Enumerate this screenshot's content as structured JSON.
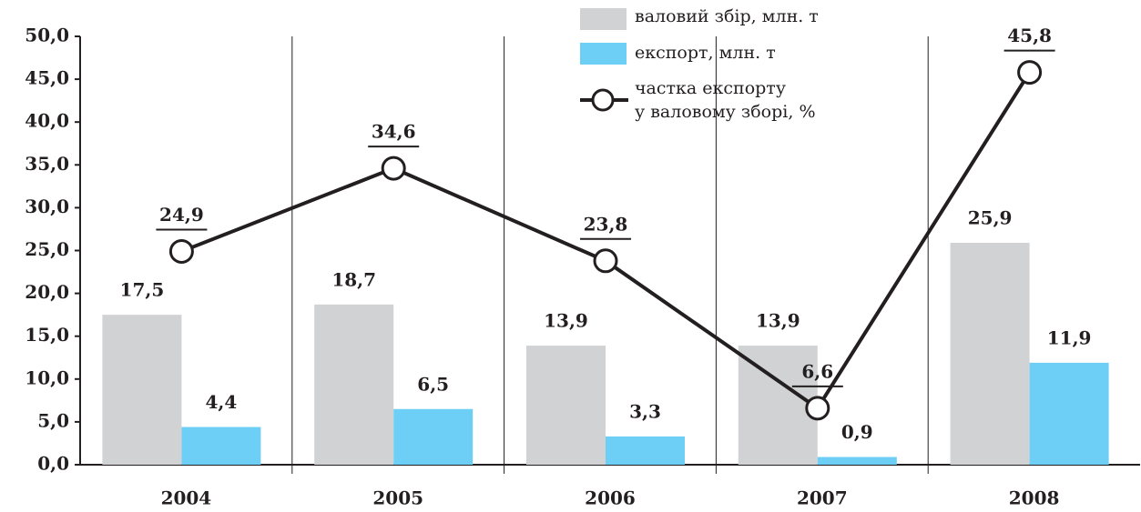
{
  "chart_data": {
    "type": "bar",
    "categories": [
      "2004",
      "2005",
      "2006",
      "2007",
      "2008"
    ],
    "series": [
      {
        "name": "валовий збір, млн. т",
        "type": "bar",
        "color": "#d1d2d3",
        "values": [
          17.5,
          18.7,
          13.9,
          13.9,
          25.9
        ],
        "value_labels": [
          "17,5",
          "18,7",
          "13,9",
          "13,9",
          "25,9"
        ]
      },
      {
        "name": "експорт, млн. т",
        "type": "bar",
        "color": "#6dcff6",
        "values": [
          4.4,
          6.5,
          3.3,
          0.9,
          11.9
        ],
        "value_labels": [
          "4,4",
          "6,5",
          "3,3",
          "0,9",
          "11,9"
        ]
      },
      {
        "name": "частка експорту\nу валовому зборі, %",
        "type": "line",
        "color": "#231f20",
        "values": [
          24.9,
          34.6,
          23.8,
          6.6,
          45.8
        ],
        "value_labels": [
          "24,9",
          "34,6",
          "23,8",
          "6,6",
          "45,8"
        ]
      }
    ],
    "ylim": [
      0,
      50
    ],
    "yticks": [
      {
        "value": 0,
        "label": "0,0"
      },
      {
        "value": 5,
        "label": "5,0"
      },
      {
        "value": 10,
        "label": "10,0"
      },
      {
        "value": 15,
        "label": "15,0"
      },
      {
        "value": 20,
        "label": "20,0"
      },
      {
        "value": 25,
        "label": "25,0"
      },
      {
        "value": 30,
        "label": "30,0"
      },
      {
        "value": 35,
        "label": "35,0"
      },
      {
        "value": 40,
        "label": "40,0"
      },
      {
        "value": 45,
        "label": "45,0"
      },
      {
        "value": 50,
        "label": "50,0"
      }
    ],
    "grid": false
  }
}
